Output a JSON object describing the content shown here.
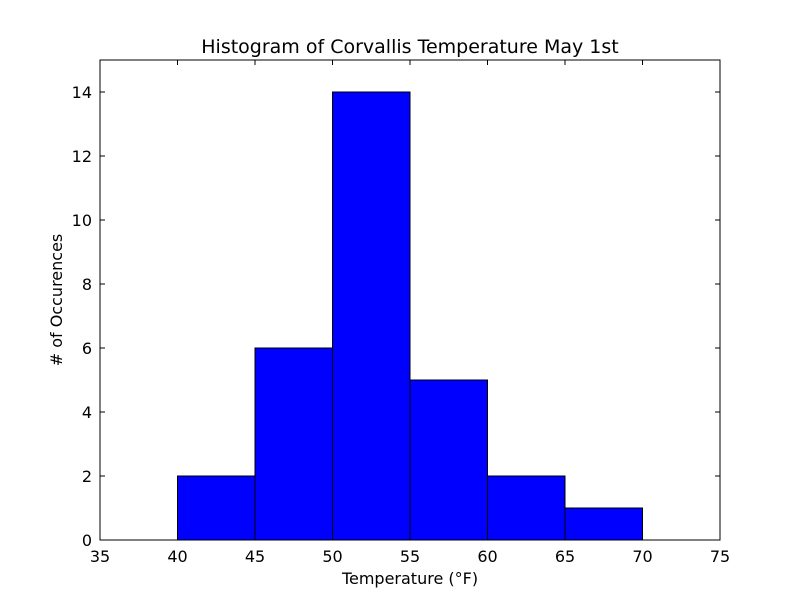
{
  "chart_data": {
    "type": "bar",
    "title": "Histogram of Corvallis Temperature May 1st",
    "xlabel": "Temperature (°F)",
    "ylabel": "# of Occurences",
    "xlim": [
      35,
      75
    ],
    "ylim": [
      0,
      15
    ],
    "xticks": [
      35,
      40,
      45,
      50,
      55,
      60,
      65,
      70,
      75
    ],
    "yticks": [
      0,
      2,
      4,
      6,
      8,
      10,
      12,
      14
    ],
    "grid": false,
    "legend": "none",
    "bins": [
      {
        "start": 40,
        "end": 45,
        "count": 2
      },
      {
        "start": 45,
        "end": 50,
        "count": 6
      },
      {
        "start": 50,
        "end": 55,
        "count": 14
      },
      {
        "start": 55,
        "end": 60,
        "count": 5
      },
      {
        "start": 60,
        "end": 65,
        "count": 2
      },
      {
        "start": 65,
        "end": 70,
        "count": 1
      }
    ],
    "bar_color": "#0000ff",
    "edge_color": "#000000"
  }
}
